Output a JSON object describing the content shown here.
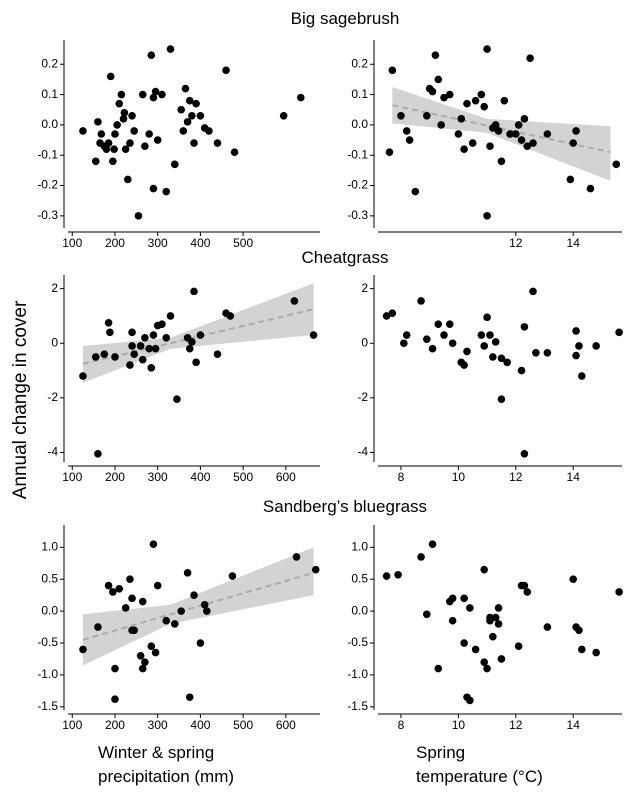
{
  "row_titles": [
    "Big sagebrush",
    "Cheatgrass",
    "Sandberg’s bluegrass"
  ],
  "y_label": "Annual change in cover",
  "x_labels": [
    [
      "Winter & spring",
      "precipitation (mm)"
    ],
    [
      "Spring",
      "temperature (°C)"
    ]
  ],
  "chart_data": [
    {
      "type": "scatter",
      "color": "#000000",
      "x": [
        125,
        155,
        160,
        165,
        168,
        175,
        180,
        185,
        190,
        195,
        198,
        200,
        205,
        210,
        215,
        220,
        222,
        225,
        230,
        235,
        240,
        245,
        255,
        265,
        270,
        280,
        285,
        290,
        290,
        295,
        300,
        310,
        320,
        330,
        340,
        355,
        360,
        365,
        370,
        375,
        380,
        385,
        390,
        400,
        410,
        420,
        440,
        460,
        480,
        595,
        635
      ],
      "values": [
        -0.02,
        -0.12,
        0.01,
        -0.06,
        -0.03,
        -0.07,
        -0.08,
        -0.06,
        0.16,
        -0.12,
        -0.08,
        -0.03,
        0.0,
        0.07,
        0.1,
        0.02,
        0.04,
        -0.08,
        -0.18,
        -0.06,
        0.03,
        -0.02,
        -0.3,
        0.1,
        -0.07,
        -0.03,
        0.23,
        -0.21,
        0.09,
        0.11,
        -0.05,
        0.1,
        -0.22,
        0.25,
        -0.13,
        0.05,
        -0.02,
        0.12,
        0.01,
        0.08,
        0.03,
        -0.06,
        0.07,
        0.03,
        -0.01,
        -0.02,
        -0.06,
        0.18,
        -0.09,
        0.03,
        0.09
      ],
      "xlim": [
        90,
        680
      ],
      "ylim": [
        -0.34,
        0.28
      ],
      "xticks": [
        100,
        200,
        300,
        400,
        500
      ],
      "yticks": [
        -0.3,
        -0.2,
        -0.1,
        {
          "value": 0,
          "label": "0.0"
        },
        0.1,
        0.2
      ]
    },
    {
      "type": "scatter",
      "color": "#000000",
      "x": [
        7.6,
        7.7,
        8.0,
        8.2,
        8.3,
        8.5,
        8.9,
        9.0,
        9.1,
        9.2,
        9.3,
        9.4,
        9.5,
        9.7,
        10.0,
        10.1,
        10.2,
        10.3,
        10.5,
        10.6,
        10.8,
        10.9,
        11.0,
        11.0,
        11.1,
        11.2,
        11.3,
        11.4,
        11.5,
        11.6,
        11.8,
        12.0,
        12.1,
        12.2,
        12.3,
        12.4,
        12.5,
        12.6,
        13.1,
        13.9,
        14.0,
        14.1,
        14.6,
        15.5
      ],
      "values": [
        -0.09,
        0.18,
        0.03,
        -0.02,
        -0.05,
        -0.22,
        0.03,
        0.12,
        0.11,
        0.23,
        0.15,
        0.0,
        0.09,
        0.1,
        -0.03,
        0.02,
        -0.08,
        0.07,
        -0.06,
        0.08,
        0.1,
        0.06,
        0.25,
        -0.3,
        -0.07,
        -0.01,
        0.0,
        -0.02,
        -0.12,
        0.08,
        -0.03,
        -0.03,
        0.0,
        -0.05,
        0.02,
        -0.07,
        0.22,
        -0.06,
        -0.03,
        -0.18,
        -0.06,
        -0.02,
        -0.21,
        -0.13
      ],
      "xlim": [
        7.2,
        15.7
      ],
      "ylim": [
        -0.34,
        0.28
      ],
      "xticks": [
        12,
        14
      ],
      "yticks": [
        -0.3,
        -0.2,
        -0.1,
        {
          "value": 0,
          "label": "0.0"
        },
        0.1,
        0.2
      ],
      "fit": {
        "color": "#aaaaaa",
        "band_color": "#d3d3d3",
        "x": [
          7.7,
          11,
          15.3
        ],
        "values": [
          0.065,
          -0.002,
          -0.09
        ],
        "lower": [
          0.005,
          -0.026,
          -0.185
        ],
        "upper": [
          0.125,
          0.02,
          -0.005
        ]
      }
    },
    {
      "type": "scatter",
      "color": "#000000",
      "x": [
        125,
        155,
        160,
        175,
        185,
        188,
        200,
        235,
        240,
        240,
        245,
        260,
        265,
        270,
        280,
        285,
        290,
        295,
        300,
        310,
        320,
        330,
        345,
        370,
        375,
        380,
        385,
        390,
        400,
        440,
        460,
        470,
        620,
        665
      ],
      "values": [
        -1.2,
        -0.5,
        -4.05,
        -0.4,
        0.75,
        0.4,
        -0.5,
        -0.8,
        -0.1,
        0.4,
        -0.4,
        -0.1,
        -0.6,
        0.2,
        -0.2,
        -0.9,
        0.3,
        -0.2,
        0.65,
        0.7,
        0.2,
        1.0,
        -2.05,
        0.2,
        -0.2,
        0.05,
        1.9,
        -0.7,
        0.3,
        -0.4,
        1.1,
        1.0,
        1.55,
        0.3
      ],
      "xlim": [
        90,
        680
      ],
      "ylim": [
        -4.35,
        2.5
      ],
      "xticks": [
        100,
        200,
        300,
        400,
        500,
        600
      ],
      "yticks": [
        -4,
        -2,
        0,
        2
      ],
      "fit": {
        "color": "#aaaaaa",
        "band_color": "#d3d3d3",
        "x": [
          125,
          330,
          665
        ],
        "values": [
          -0.75,
          0.0,
          1.25
        ],
        "lower": [
          -1.45,
          -0.2,
          0.3
        ],
        "upper": [
          -0.1,
          0.2,
          2.2
        ]
      }
    },
    {
      "type": "scatter",
      "color": "#000000",
      "x": [
        7.5,
        7.7,
        8.1,
        8.2,
        8.7,
        8.9,
        9.1,
        9.3,
        9.5,
        9.7,
        9.8,
        10.1,
        10.2,
        10.3,
        10.8,
        10.9,
        11.0,
        11.1,
        11.2,
        11.3,
        11.5,
        11.5,
        11.7,
        12.2,
        12.3,
        12.3,
        12.6,
        12.7,
        13.1,
        14.1,
        14.1,
        14.2,
        14.3,
        14.8,
        15.6
      ],
      "values": [
        1.0,
        1.1,
        0.0,
        0.3,
        1.55,
        0.15,
        -0.2,
        0.7,
        0.3,
        0.7,
        0.0,
        -0.7,
        -0.8,
        -0.3,
        0.3,
        -0.1,
        0.95,
        0.3,
        -0.5,
        0.05,
        -2.05,
        -0.55,
        -0.7,
        -1.0,
        0.6,
        -4.05,
        1.9,
        -0.35,
        -0.35,
        0.45,
        -0.45,
        -0.1,
        -1.2,
        -0.1,
        0.4
      ],
      "xlim": [
        7.2,
        15.7
      ],
      "ylim": [
        -4.35,
        2.5
      ],
      "xticks": [
        8,
        10,
        12,
        14
      ],
      "yticks": [
        -4,
        -2,
        0,
        2
      ]
    },
    {
      "type": "scatter",
      "color": "#000000",
      "x": [
        125,
        160,
        185,
        195,
        200,
        200,
        210,
        225,
        235,
        240,
        240,
        245,
        260,
        265,
        265,
        270,
        285,
        290,
        295,
        300,
        320,
        340,
        355,
        370,
        375,
        385,
        400,
        410,
        415,
        475,
        625,
        670
      ],
      "values": [
        -0.6,
        -0.25,
        0.4,
        0.3,
        -0.9,
        -1.38,
        0.35,
        0.05,
        0.5,
        -0.3,
        0.2,
        -0.3,
        -0.7,
        -0.9,
        0.15,
        -0.8,
        -0.55,
        1.05,
        -0.65,
        0.4,
        -0.15,
        -0.2,
        0.0,
        0.6,
        -1.35,
        0.25,
        -0.5,
        0.1,
        0.0,
        0.55,
        0.85,
        0.65
      ],
      "xlim": [
        90,
        680
      ],
      "ylim": [
        -1.55,
        1.35
      ],
      "xticks": [
        100,
        200,
        300,
        400,
        500,
        600
      ],
      "yticks": [
        -1.5,
        {
          "value": -1,
          "label": "-1.0"
        },
        -0.5,
        {
          "value": 0,
          "label": "0.0"
        },
        0.5,
        {
          "value": 1,
          "label": "1.0"
        }
      ],
      "fit": {
        "color": "#aaaaaa",
        "band_color": "#d3d3d3",
        "x": [
          125,
          330,
          665
        ],
        "values": [
          -0.45,
          -0.05,
          0.6
        ],
        "lower": [
          -0.85,
          -0.2,
          0.25
        ],
        "upper": [
          -0.05,
          0.1,
          1.0
        ]
      }
    },
    {
      "type": "scatter",
      "color": "#000000",
      "x": [
        7.5,
        7.9,
        8.7,
        8.9,
        9.1,
        9.3,
        9.7,
        9.8,
        9.8,
        10.2,
        10.2,
        10.3,
        10.4,
        10.4,
        10.6,
        10.9,
        10.9,
        11.0,
        11.1,
        11.1,
        11.2,
        11.3,
        11.4,
        11.4,
        11.5,
        12.1,
        12.2,
        12.3,
        12.4,
        13.1,
        14.0,
        14.1,
        14.2,
        14.3,
        14.8,
        15.6
      ],
      "values": [
        0.55,
        0.57,
        0.85,
        -0.05,
        1.05,
        -0.9,
        0.15,
        -0.15,
        0.2,
        0.2,
        -0.5,
        -1.35,
        -1.4,
        0.05,
        -0.6,
        0.65,
        -0.8,
        -0.9,
        -0.15,
        -0.1,
        -0.4,
        -0.1,
        -0.2,
        0.05,
        -0.75,
        -0.55,
        0.4,
        0.4,
        0.3,
        -0.25,
        0.5,
        -0.25,
        -0.3,
        -0.6,
        -0.65,
        0.3
      ],
      "xlim": [
        7.2,
        15.7
      ],
      "ylim": [
        -1.55,
        1.35
      ],
      "xticks": [
        8,
        10,
        12,
        14
      ],
      "yticks": [
        -1.5,
        {
          "value": -1,
          "label": "-1.0"
        },
        -0.5,
        {
          "value": 0,
          "label": "0.0"
        },
        0.5,
        {
          "value": 1,
          "label": "1.0"
        }
      ]
    }
  ]
}
